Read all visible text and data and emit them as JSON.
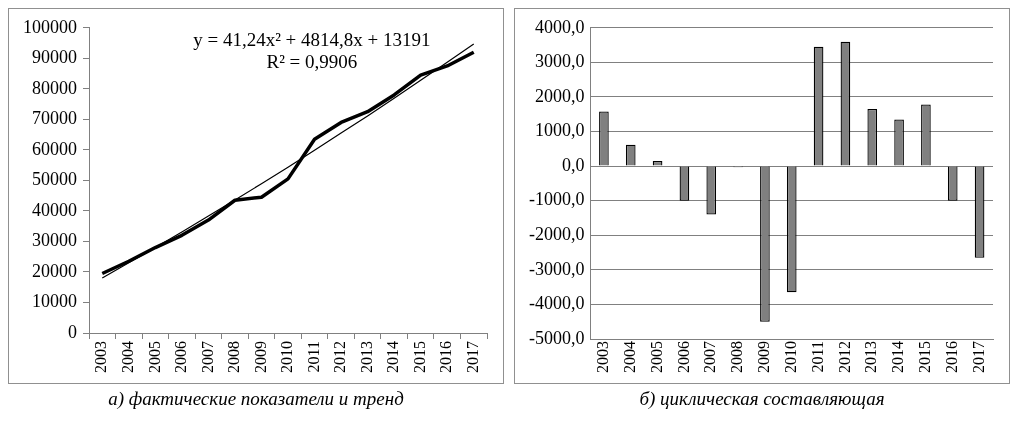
{
  "chart_data": [
    {
      "type": "line",
      "title": "а) фактические показатели и тренд",
      "categories": [
        "2003",
        "2004",
        "2005",
        "2006",
        "2007",
        "2008",
        "2009",
        "2010",
        "2011",
        "2012",
        "2013",
        "2014",
        "2015",
        "2016",
        "2017"
      ],
      "series": [
        {
          "color": "#000000",
          "values": [
            19500,
            23500,
            28000,
            32000,
            37000,
            43500,
            44500,
            50500,
            63500,
            69000,
            72500,
            78000,
            84500,
            87500,
            92000
          ]
        },
        {
          "type": "line",
          "color": "#000000",
          "values": [
            18000,
            23000,
            28000,
            33100,
            38300,
            43600,
            48900,
            54300,
            59900,
            65500,
            71100,
            76900,
            82800,
            88700,
            94700
          ]
        }
      ],
      "ylim": [
        0,
        100000
      ],
      "yticks": [
        0,
        10000,
        20000,
        30000,
        40000,
        50000,
        60000,
        70000,
        80000,
        90000,
        100000
      ],
      "grid": false,
      "legend": false,
      "marker": "none",
      "line_style": "solid",
      "annotations": [
        "y = 41,24x² + 4814,8x + 13191",
        "R² = 0,9906"
      ]
    },
    {
      "type": "bar",
      "title": "б) циклическая составляющая",
      "categories": [
        "2003",
        "2004",
        "2005",
        "2006",
        "2007",
        "2008",
        "2009",
        "2010",
        "2011",
        "2012",
        "2013",
        "2014",
        "2015",
        "2016",
        "2017"
      ],
      "values": [
        1580,
        620,
        150,
        -1000,
        -1400,
        -30,
        -4500,
        -3650,
        3450,
        3600,
        1650,
        1350,
        1780,
        -1000,
        -2650
      ],
      "color": "#808080",
      "ylim": [
        -5000,
        4000
      ],
      "yticks": [
        {
          "value": -5000,
          "label": "-5000,0"
        },
        {
          "value": -4000,
          "label": "-4000,0"
        },
        {
          "value": -3000,
          "label": "-3000,0"
        },
        {
          "value": -2000,
          "label": "-2000,0"
        },
        {
          "value": -1000,
          "label": "-1000,0"
        },
        {
          "value": 0,
          "label": "0,0"
        },
        {
          "value": 1000,
          "label": "1000,0"
        },
        {
          "value": 2000,
          "label": "2000,0"
        },
        {
          "value": 3000,
          "label": "3000,0"
        },
        {
          "value": 4000,
          "label": "4000,0"
        }
      ],
      "grid": "y",
      "legend": false
    }
  ]
}
